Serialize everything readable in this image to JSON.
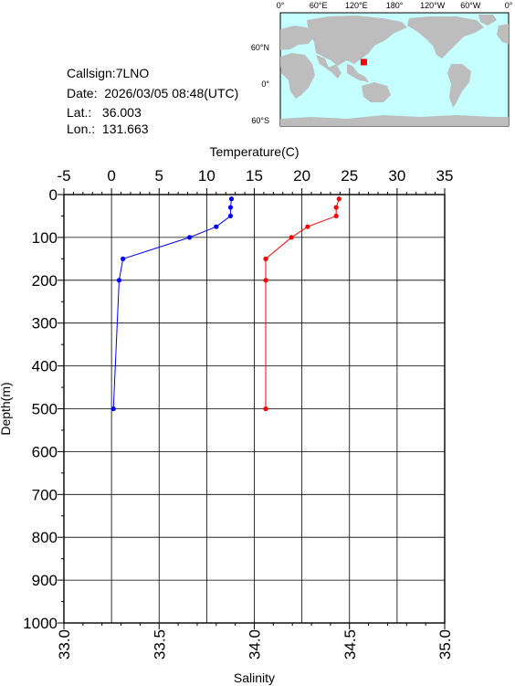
{
  "station": {
    "callsign_line": "Callsign:7LNO",
    "date_line": "Date:  2026/03/05 08:48(UTC)",
    "lat_line": "Lat.:   36.003",
    "lon_line": "Lon.:  131.663"
  },
  "map": {
    "top_ticks": [
      "0°",
      "60°E",
      "120°E",
      "180°",
      "120°W",
      "60°W",
      "0°"
    ],
    "right_ticks": [
      "60°N",
      "0°",
      "60°S"
    ],
    "ocean_color": "#c6ffff",
    "land_color": "#bdbdbd",
    "marker_color": "#ff0000",
    "marker_lon": 131.663,
    "marker_lat": 36.003
  },
  "chart_data": {
    "type": "line",
    "title": "",
    "orientation": "vertical-profile",
    "y": {
      "label": "Depth(m)",
      "range": [
        0,
        1000
      ],
      "inverted": true,
      "ticks": [
        "0",
        "100",
        "200",
        "300",
        "400",
        "500",
        "600",
        "700",
        "800",
        "900",
        "1000"
      ]
    },
    "x_top": {
      "label": "Temperature(C)",
      "range": [
        -5,
        35
      ],
      "ticks": [
        "-5",
        "0",
        "5",
        "10",
        "15",
        "20",
        "25",
        "30",
        "35"
      ]
    },
    "x_bottom": {
      "label": "Salinity",
      "range": [
        33.0,
        35.0
      ],
      "ticks": [
        "33.0",
        "33.5",
        "34.0",
        "34.5",
        "35.0"
      ]
    },
    "grid": true,
    "series": [
      {
        "axis": "top",
        "color": "#ff0000",
        "points": [
          {
            "depth": 10,
            "value": 23.9
          },
          {
            "depth": 30,
            "value": 23.6
          },
          {
            "depth": 50,
            "value": 23.6
          },
          {
            "depth": 75,
            "value": 20.6
          },
          {
            "depth": 100,
            "value": 18.9
          },
          {
            "depth": 150,
            "value": 16.2
          },
          {
            "depth": 200,
            "value": 16.2
          },
          {
            "depth": 500,
            "value": 16.2
          }
        ]
      },
      {
        "axis": "bottom",
        "color": "#0000ff",
        "points": [
          {
            "depth": 10,
            "value": 33.88
          },
          {
            "depth": 30,
            "value": 33.875
          },
          {
            "depth": 50,
            "value": 33.875
          },
          {
            "depth": 75,
            "value": 33.8
          },
          {
            "depth": 100,
            "value": 33.66
          },
          {
            "depth": 150,
            "value": 33.31
          },
          {
            "depth": 200,
            "value": 33.29
          },
          {
            "depth": 500,
            "value": 33.26
          }
        ]
      }
    ]
  }
}
